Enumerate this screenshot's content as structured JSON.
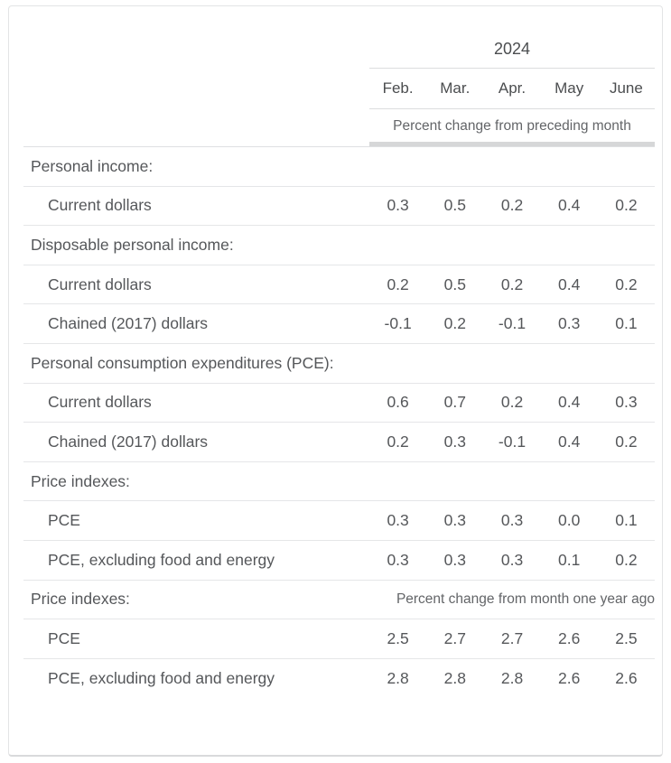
{
  "chart_data": {
    "type": "table",
    "year_header": "2024",
    "columns": [
      "Feb.",
      "Mar.",
      "Apr.",
      "May",
      "June"
    ],
    "unit_note_top": "Percent change from preceding month",
    "rows": [
      {
        "type": "section",
        "label": "Personal income:"
      },
      {
        "type": "item",
        "label": "Current dollars",
        "values": [
          "0.3",
          "0.5",
          "0.2",
          "0.4",
          "0.2"
        ]
      },
      {
        "type": "section",
        "label": "Disposable personal income:"
      },
      {
        "type": "item",
        "label": "Current dollars",
        "values": [
          "0.2",
          "0.5",
          "0.2",
          "0.4",
          "0.2"
        ]
      },
      {
        "type": "item",
        "label": "Chained (2017) dollars",
        "values": [
          "-0.1",
          "0.2",
          "-0.1",
          "0.3",
          "0.1"
        ]
      },
      {
        "type": "section",
        "label": "Personal consumption expenditures (PCE):"
      },
      {
        "type": "item",
        "label": "Current dollars",
        "values": [
          "0.6",
          "0.7",
          "0.2",
          "0.4",
          "0.3"
        ]
      },
      {
        "type": "item",
        "label": "Chained (2017) dollars",
        "values": [
          "0.2",
          "0.3",
          "-0.1",
          "0.4",
          "0.2"
        ]
      },
      {
        "type": "section",
        "label": "Price indexes:"
      },
      {
        "type": "item",
        "label": "PCE",
        "values": [
          "0.3",
          "0.3",
          "0.3",
          "0.0",
          "0.1"
        ]
      },
      {
        "type": "item",
        "label": "PCE, excluding food and energy",
        "values": [
          "0.3",
          "0.3",
          "0.3",
          "0.1",
          "0.2"
        ]
      },
      {
        "type": "section",
        "label": "Price indexes:",
        "note": "Percent change from month one year ago"
      },
      {
        "type": "item",
        "label": "PCE",
        "values": [
          "2.5",
          "2.7",
          "2.7",
          "2.6",
          "2.5"
        ]
      },
      {
        "type": "item",
        "label": "PCE, excluding food and energy",
        "values": [
          "2.8",
          "2.8",
          "2.8",
          "2.6",
          "2.6"
        ]
      }
    ]
  }
}
